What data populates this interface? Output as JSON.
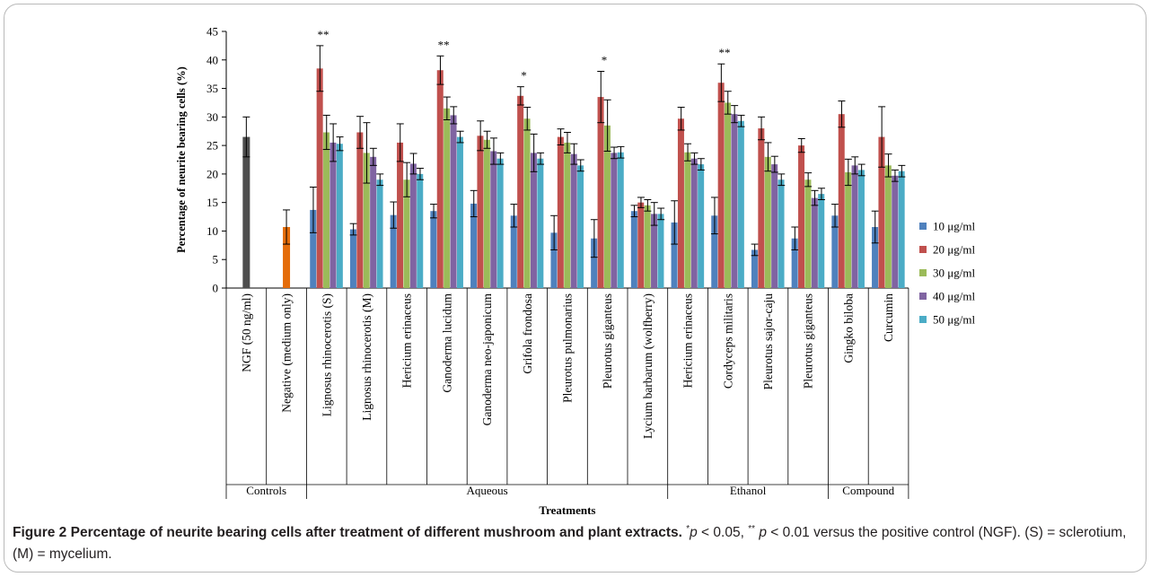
{
  "chart_data": {
    "type": "bar",
    "ylabel": "Percentage of neurite bearing cells (%)",
    "xlabel": "Treatments",
    "ylim": [
      0,
      45
    ],
    "yticks": [
      0,
      5,
      10,
      15,
      20,
      25,
      30,
      35,
      40,
      45
    ],
    "legend_position": "right",
    "categories": [
      "NGF (50 ng/ml)",
      "Negative (medium only)",
      "Lignosus rhinocerotis (S)",
      "Lignosus rhinocerotis (M)",
      "Hericium erinaceus",
      "Ganoderma lucidum",
      "Ganoderma neo-japonicum",
      "Grifola frondosa",
      "Pleurotus pulmonarius",
      "Pleurotus giganteus",
      "Lycium barbarum (wolfberry)",
      "Hericium erinaceus",
      "Cordyceps militaris",
      "Pleurotus sajor-caju",
      "Pleurotus giganteus",
      "Gingko biloba",
      "Curcumin"
    ],
    "groups": [
      {
        "label": "Controls",
        "start": 0,
        "end": 1
      },
      {
        "label": "Aqueous",
        "start": 2,
        "end": 10
      },
      {
        "label": "Ethanol",
        "start": 11,
        "end": 14
      },
      {
        "label": "Compound",
        "start": 15,
        "end": 16
      }
    ],
    "controls": [
      {
        "category_index": 0,
        "value": 26.5,
        "error": 3.5,
        "color": "#4d4d4d"
      },
      {
        "category_index": 1,
        "value": 10.7,
        "error": 3.0,
        "color": "#e46c0a"
      }
    ],
    "series": [
      {
        "name": "10 μg/ml",
        "color": "#4f81bd",
        "values": [
          null,
          null,
          13.7,
          10.3,
          12.8,
          13.5,
          14.8,
          12.7,
          9.7,
          8.7,
          13.5,
          11.5,
          12.7,
          6.7,
          8.7,
          12.7,
          10.7
        ],
        "errors": [
          null,
          null,
          4.0,
          1.0,
          2.3,
          1.2,
          2.3,
          2.0,
          3.0,
          3.3,
          1.0,
          3.8,
          3.2,
          1.0,
          2.0,
          2.0,
          2.8
        ]
      },
      {
        "name": "20 μg/ml",
        "color": "#c0504d",
        "values": [
          null,
          null,
          38.5,
          27.3,
          25.5,
          38.2,
          26.7,
          33.7,
          26.5,
          33.5,
          15.0,
          29.7,
          36.0,
          28.0,
          25.0,
          30.5,
          26.5
        ],
        "errors": [
          null,
          null,
          4.0,
          2.8,
          3.3,
          2.5,
          2.6,
          1.6,
          1.4,
          4.5,
          0.9,
          2.0,
          3.3,
          2.0,
          1.2,
          2.3,
          5.3
        ]
      },
      {
        "name": "30 μg/ml",
        "color": "#9bbb59",
        "values": [
          null,
          null,
          27.3,
          23.7,
          19.0,
          31.5,
          26.0,
          29.7,
          25.5,
          28.5,
          14.5,
          23.8,
          32.5,
          23.0,
          19.0,
          20.3,
          21.5
        ],
        "errors": [
          null,
          null,
          3.0,
          5.3,
          3.0,
          2.0,
          1.5,
          2.0,
          1.8,
          4.5,
          1.0,
          1.5,
          2.0,
          2.5,
          1.2,
          2.3,
          2.0
        ]
      },
      {
        "name": "40 μg/ml",
        "color": "#8064a2",
        "values": [
          null,
          null,
          25.5,
          23.0,
          21.8,
          30.3,
          24.0,
          23.7,
          23.5,
          23.7,
          13.0,
          22.7,
          30.5,
          21.7,
          15.8,
          21.5,
          19.7
        ],
        "errors": [
          null,
          null,
          3.3,
          1.5,
          1.8,
          1.5,
          2.3,
          3.3,
          1.8,
          1.0,
          2.0,
          1.0,
          1.5,
          1.4,
          1.3,
          1.5,
          1.0
        ]
      },
      {
        "name": "50 μg/ml",
        "color": "#4bacc6",
        "values": [
          null,
          null,
          25.3,
          19.0,
          20.0,
          26.5,
          22.7,
          22.7,
          21.5,
          23.8,
          13.0,
          21.7,
          29.3,
          19.0,
          16.5,
          20.7,
          20.5
        ],
        "errors": [
          null,
          null,
          1.2,
          1.0,
          1.0,
          1.0,
          1.0,
          1.0,
          1.0,
          1.0,
          1.0,
          1.0,
          1.0,
          1.0,
          1.0,
          1.0,
          1.0
        ]
      }
    ],
    "annotations": [
      {
        "category_index": 2,
        "text": "**"
      },
      {
        "category_index": 5,
        "text": "**"
      },
      {
        "category_index": 7,
        "text": "*"
      },
      {
        "category_index": 9,
        "text": "*"
      },
      {
        "category_index": 12,
        "text": "**"
      }
    ]
  },
  "caption": {
    "label": "Figure 2",
    "title": "Percentage of neurite bearing cells after treatment of different mushroom and plant extracts.",
    "sig1_mark": "*",
    "p_symbol": "p",
    "sig1_text": " < 0.05, ",
    "sig2_mark": "**",
    "sig2_text": " < 0.01 versus the positive control (NGF). (S) = sclerotium, (M) = mycelium."
  }
}
